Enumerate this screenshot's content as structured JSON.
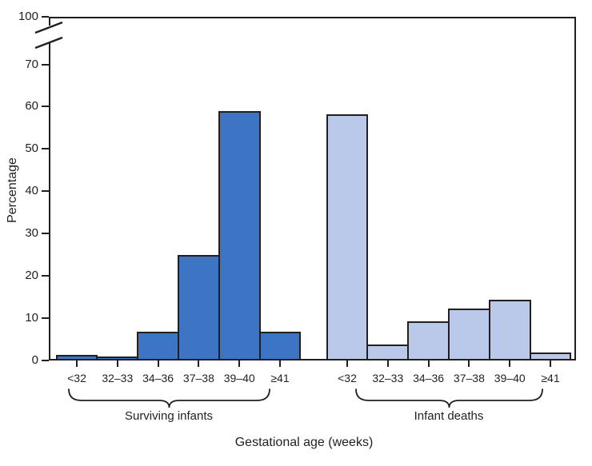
{
  "chart_data": {
    "type": "bar",
    "title": "",
    "xlabel": "Gestational age (weeks)",
    "ylabel": "Percentage",
    "ylim": [
      0,
      100
    ],
    "y_ticks": [
      0,
      10,
      20,
      30,
      40,
      50,
      60,
      70,
      100
    ],
    "axis_break": {
      "between": [
        70,
        100
      ],
      "style": "double-slash"
    },
    "grid": false,
    "legend_position": "braces-below-x-axis",
    "categories": [
      "<32",
      "32–33",
      "34–36",
      "37–38",
      "39–40",
      "≥41"
    ],
    "series": [
      {
        "name": "Surviving infants",
        "color": "#3d74c4",
        "values": [
          1.3,
          1.0,
          6.8,
          25,
          59,
          6.8
        ]
      },
      {
        "name": "Infant deaths",
        "color": "#bac8e9",
        "values": [
          58.2,
          3.8,
          9.3,
          12.2,
          14.4,
          1.9
        ]
      }
    ]
  },
  "colors": {
    "surviving_fill": "#3d74c4",
    "deaths_fill": "#bac8e9",
    "line": "#231f20",
    "background": "#ffffff"
  }
}
